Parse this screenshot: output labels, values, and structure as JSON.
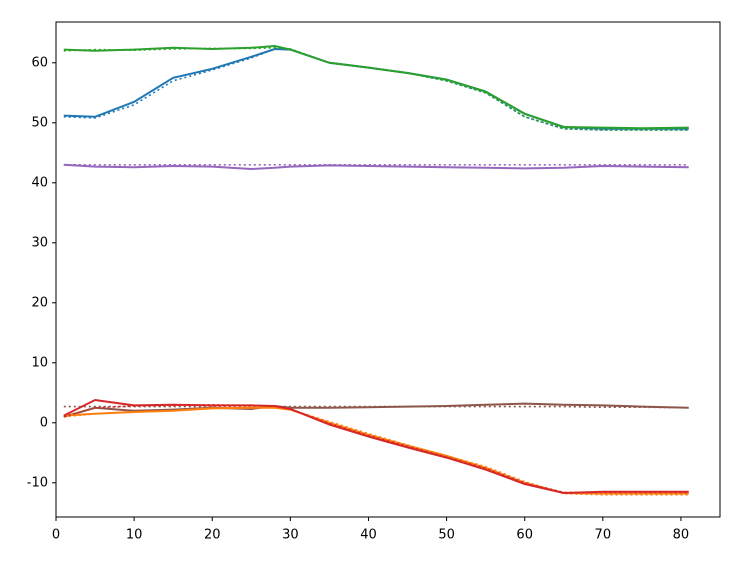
{
  "chart_data": {
    "type": "line",
    "x": [
      1,
      5,
      10,
      15,
      20,
      25,
      28,
      30,
      35,
      40,
      45,
      50,
      55,
      60,
      65,
      70,
      75,
      81
    ],
    "series": [
      {
        "color": "#1f77b4",
        "linestyle": "solid",
        "values": [
          51.2,
          51,
          53.5,
          57.5,
          59,
          61,
          62.3,
          62.2,
          60,
          59.2,
          58.3,
          57.2,
          55.2,
          51.5,
          49.3,
          49,
          49,
          49
        ]
      },
      {
        "color": "#1f77b4",
        "linestyle": "dotted",
        "values": [
          51,
          50.8,
          53,
          57,
          58.8,
          60.8,
          62.3,
          62.3,
          60,
          59.2,
          58.3,
          57,
          55,
          51,
          49,
          48.8,
          48.8,
          48.8
        ]
      },
      {
        "color": "#2ca02c",
        "linestyle": "solid",
        "values": [
          62.2,
          62,
          62.2,
          62.5,
          62.3,
          62.5,
          62.8,
          62.2,
          60,
          59.2,
          58.3,
          57.2,
          55.2,
          51.5,
          49.3,
          49.2,
          49.1,
          49.2
        ]
      },
      {
        "color": "#2ca02c",
        "linestyle": "dotted",
        "values": [
          62,
          62.2,
          62.1,
          62.3,
          62.4,
          62.4,
          62.5,
          62.3,
          60,
          59.2,
          58.3,
          57,
          55,
          51,
          49,
          48.8,
          48.8,
          48.8
        ]
      },
      {
        "color": "#9467bd",
        "linestyle": "solid",
        "values": [
          43,
          42.7,
          42.6,
          42.8,
          42.7,
          42.3,
          42.5,
          42.7,
          42.9,
          42.8,
          42.7,
          42.6,
          42.5,
          42.4,
          42.5,
          42.8,
          42.7,
          42.6
        ]
      },
      {
        "color": "#9467bd",
        "linestyle": "dotted",
        "values": [
          43,
          43,
          43,
          43,
          43,
          43,
          43,
          43,
          43,
          43,
          43,
          43,
          43,
          43,
          43,
          43,
          43,
          43
        ]
      },
      {
        "color": "#8c564b",
        "linestyle": "solid",
        "values": [
          1,
          2.5,
          2,
          2.2,
          2.5,
          2.3,
          2.8,
          2.5,
          2.5,
          2.6,
          2.7,
          2.8,
          3,
          3.2,
          3,
          2.9,
          2.7,
          2.5
        ]
      },
      {
        "color": "#8c564b",
        "linestyle": "dotted",
        "values": [
          2.7,
          2.7,
          2.7,
          2.7,
          2.7,
          2.7,
          2.7,
          2.7,
          2.7,
          2.7,
          2.7,
          2.7,
          2.7,
          2.7,
          2.7,
          2.6,
          2.6,
          2.5
        ]
      },
      {
        "color": "#ff7f0e",
        "linestyle": "solid",
        "values": [
          1.2,
          1.5,
          1.8,
          2,
          2.4,
          2.5,
          2.5,
          2.2,
          0,
          -2,
          -3.8,
          -5.5,
          -7.5,
          -10,
          -11.7,
          -11.8,
          -11.8,
          -11.8
        ]
      },
      {
        "color": "#ff7f0e",
        "linestyle": "dotted",
        "values": [
          1,
          1.5,
          1.8,
          2,
          2.5,
          2.6,
          2.6,
          2.2,
          0.2,
          -1.8,
          -3.7,
          -5.5,
          -7.3,
          -9.8,
          -11.8,
          -12,
          -12,
          -12
        ]
      },
      {
        "color": "#d62728",
        "linestyle": "solid",
        "values": [
          1.2,
          3.8,
          2.9,
          3,
          2.9,
          2.9,
          2.8,
          2.3,
          -0.3,
          -2.3,
          -4.1,
          -5.8,
          -7.8,
          -10.2,
          -11.7,
          -11.5,
          -11.5,
          -11.5
        ]
      },
      {
        "color": "#d62728",
        "linestyle": "dotted",
        "values": [
          1,
          2.5,
          2.8,
          2.9,
          3,
          2.9,
          2.8,
          2.3,
          -0.1,
          -2.1,
          -3.9,
          -5.7,
          -7.6,
          -10,
          -11.6,
          -11.6,
          -11.6,
          -11.6
        ]
      }
    ],
    "xlim": [
      0,
      85
    ],
    "xticks": [
      0,
      10,
      20,
      30,
      40,
      50,
      60,
      70,
      80
    ],
    "ylim": [
      -15.7,
      66.8
    ],
    "yticks": [
      -10,
      0,
      10,
      20,
      30,
      40,
      50,
      60
    ]
  }
}
